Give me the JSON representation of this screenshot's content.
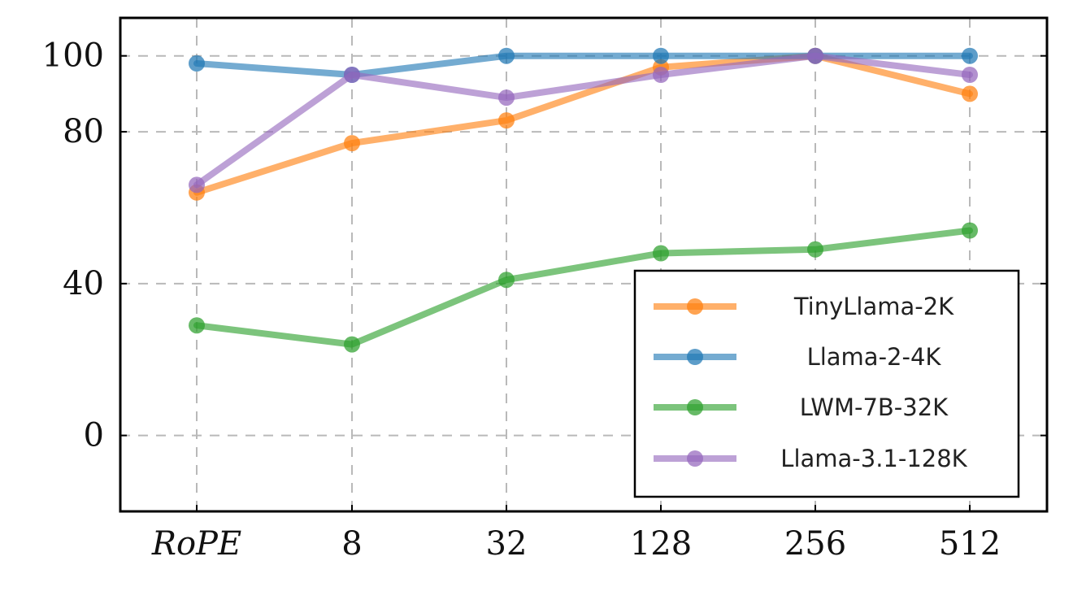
{
  "chart_data": {
    "type": "line",
    "categories": [
      "RoPE",
      "8",
      "32",
      "128",
      "256",
      "512"
    ],
    "ylim": [
      -20,
      110
    ],
    "yticks": [
      0,
      40,
      80,
      100
    ],
    "grid": true,
    "legend_position": "bottom-right",
    "series": [
      {
        "name": "TinyLlama-2K",
        "color": "#ff7f0e",
        "values": [
          64,
          77,
          83,
          97,
          100,
          90
        ]
      },
      {
        "name": "Llama-2-4K",
        "color": "#1f77b4",
        "values": [
          98,
          95,
          100,
          100,
          100,
          100
        ]
      },
      {
        "name": "LWM-7B-32K",
        "color": "#2ca02c",
        "values": [
          29,
          24,
          41,
          48,
          49,
          54
        ]
      },
      {
        "name": "Llama-3.1-128K",
        "color": "#9467bd",
        "values": [
          66,
          95,
          89,
          95,
          100,
          95
        ]
      }
    ]
  }
}
